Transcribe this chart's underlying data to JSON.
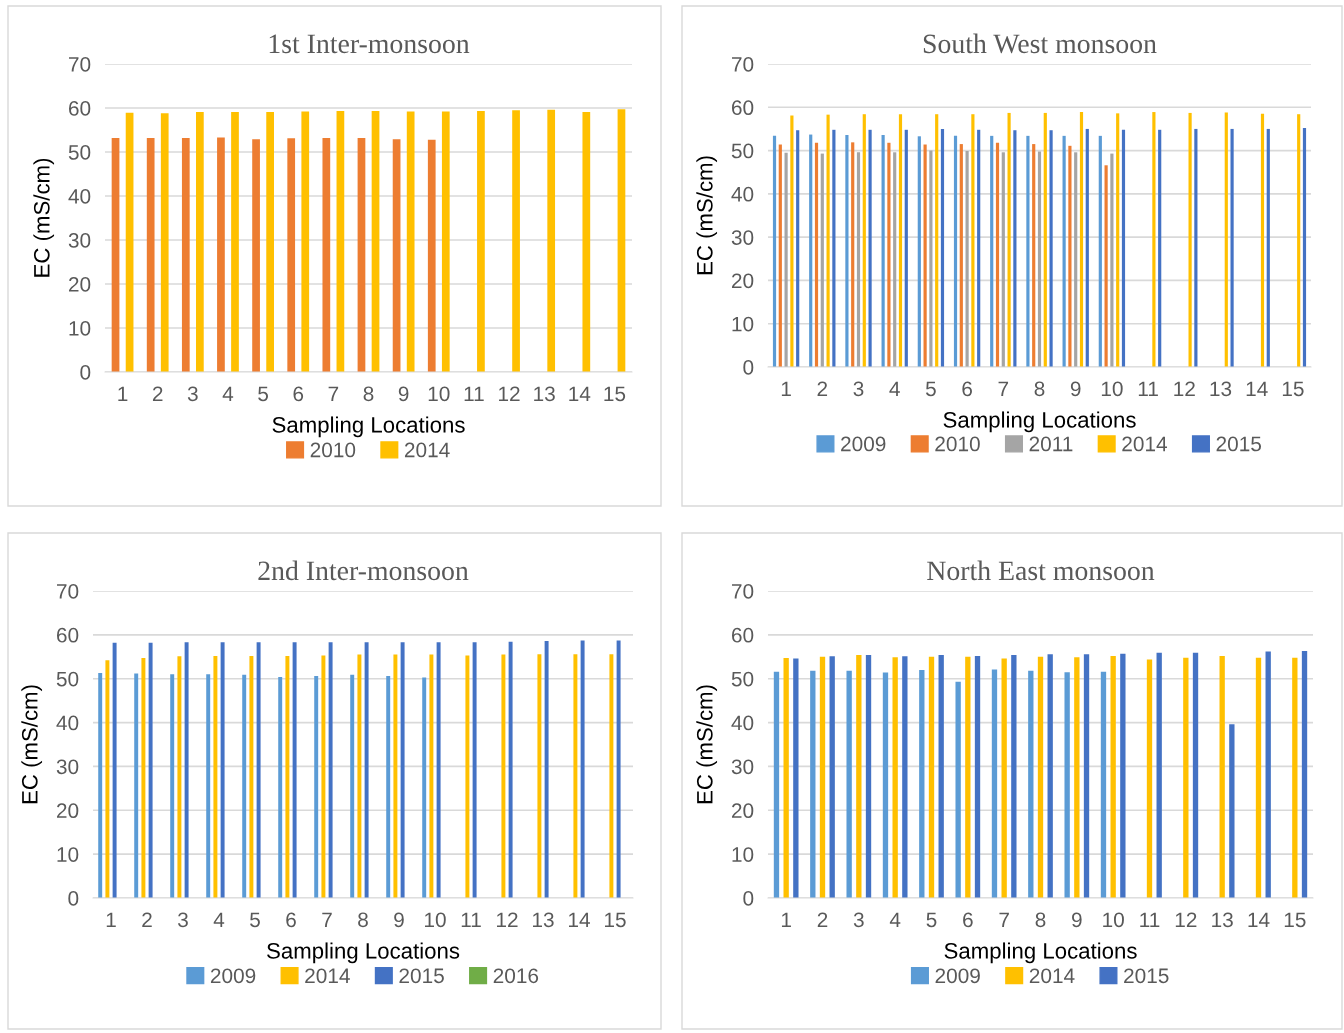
{
  "chart_data": [
    {
      "type": "bar",
      "title": "1st Inter-monsoon",
      "xlabel": "Sampling Locations",
      "ylabel": "EC (mS/cm)",
      "categories": [
        "1",
        "2",
        "3",
        "4",
        "5",
        "6",
        "7",
        "8",
        "9",
        "10",
        "11",
        "12",
        "13",
        "14",
        "15"
      ],
      "ylim": [
        0,
        70
      ],
      "yticks": [
        0,
        10,
        20,
        30,
        40,
        50,
        60,
        70
      ],
      "grid": "y",
      "legend": "bottom",
      "series": [
        {
          "name": "2010",
          "color": "#ed7d31",
          "values": [
            53.2,
            53.2,
            53.2,
            53.3,
            52.9,
            53.1,
            53.2,
            53.2,
            52.9,
            52.8,
            null,
            null,
            null,
            null,
            null
          ]
        },
        {
          "name": "2014",
          "color": "#ffc000",
          "values": [
            58.9,
            58.8,
            59.1,
            59.1,
            59.1,
            59.2,
            59.3,
            59.3,
            59.2,
            59.2,
            59.3,
            59.5,
            59.6,
            59.1,
            59.7
          ]
        }
      ]
    },
    {
      "type": "bar",
      "title": "South West monsoon",
      "xlabel": "Sampling Locations",
      "ylabel": "EC (mS/cm)",
      "categories": [
        "1",
        "2",
        "3",
        "4",
        "5",
        "6",
        "7",
        "8",
        "9",
        "10",
        "11",
        "12",
        "13",
        "14",
        "15"
      ],
      "ylim": [
        0,
        70
      ],
      "yticks": [
        0,
        10,
        20,
        30,
        40,
        50,
        60,
        70
      ],
      "grid": "y",
      "legend": "bottom",
      "series": [
        {
          "name": "2009",
          "color": "#5b9bd5",
          "values": [
            53.4,
            53.7,
            53.6,
            53.6,
            53.3,
            53.4,
            53.4,
            53.4,
            53.4,
            53.4,
            null,
            null,
            null,
            null,
            null
          ]
        },
        {
          "name": "2010",
          "color": "#ed7d31",
          "values": [
            51.4,
            51.8,
            51.9,
            51.8,
            51.4,
            51.5,
            51.8,
            51.5,
            51.1,
            46.6,
            null,
            null,
            null,
            null,
            null
          ]
        },
        {
          "name": "2011",
          "color": "#a5a5a5",
          "values": [
            49.5,
            49.3,
            49.6,
            49.6,
            50.0,
            49.9,
            49.6,
            49.8,
            49.6,
            49.3,
            null,
            null,
            null,
            null,
            null
          ]
        },
        {
          "name": "2014",
          "color": "#ffc000",
          "values": [
            58.1,
            58.3,
            58.4,
            58.4,
            58.4,
            58.4,
            58.7,
            58.7,
            58.9,
            58.6,
            58.9,
            58.7,
            58.8,
            58.5,
            58.4
          ]
        },
        {
          "name": "2015",
          "color": "#4472c4",
          "values": [
            54.7,
            54.8,
            54.8,
            54.8,
            55.0,
            54.8,
            54.7,
            54.7,
            55.0,
            54.8,
            54.8,
            55.0,
            55.0,
            55.0,
            55.2
          ]
        }
      ]
    },
    {
      "type": "bar",
      "title": "2nd Inter-monsoon",
      "xlabel": "Sampling Locations",
      "ylabel": "EC (mS/cm)",
      "categories": [
        "1",
        "2",
        "3",
        "4",
        "5",
        "6",
        "7",
        "8",
        "9",
        "10",
        "11",
        "12",
        "13",
        "14",
        "15"
      ],
      "ylim": [
        0,
        70
      ],
      "yticks": [
        0,
        10,
        20,
        30,
        40,
        50,
        60,
        70
      ],
      "grid": "y",
      "legend": "bottom",
      "series": [
        {
          "name": "2009",
          "color": "#5b9bd5",
          "values": [
            51.3,
            51.2,
            51.0,
            51.0,
            50.9,
            50.4,
            50.6,
            50.9,
            50.6,
            50.3,
            null,
            null,
            null,
            null,
            null
          ]
        },
        {
          "name": "2014",
          "color": "#ffc000",
          "values": [
            54.2,
            54.7,
            55.1,
            55.2,
            55.2,
            55.2,
            55.3,
            55.5,
            55.5,
            55.5,
            55.3,
            55.5,
            55.6,
            55.6,
            55.6
          ]
        },
        {
          "name": "2015",
          "color": "#4472c4",
          "values": [
            58.2,
            58.2,
            58.3,
            58.3,
            58.3,
            58.3,
            58.3,
            58.3,
            58.3,
            58.3,
            58.3,
            58.4,
            58.6,
            58.7,
            58.7
          ]
        },
        {
          "name": "2016",
          "color": "#70ad47",
          "values": [
            null,
            null,
            null,
            null,
            null,
            null,
            null,
            null,
            null,
            null,
            null,
            null,
            null,
            null,
            null
          ]
        }
      ]
    },
    {
      "type": "bar",
      "title": "North East monsoon",
      "xlabel": "Sampling Locations",
      "ylabel": "EC (mS/cm)",
      "categories": [
        "1",
        "2",
        "3",
        "4",
        "5",
        "6",
        "7",
        "8",
        "9",
        "10",
        "11",
        "12",
        "13",
        "14",
        "15"
      ],
      "ylim": [
        0,
        70
      ],
      "yticks": [
        0,
        10,
        20,
        30,
        40,
        50,
        60,
        70
      ],
      "grid": "y",
      "legend": "bottom",
      "series": [
        {
          "name": "2009",
          "color": "#5b9bd5",
          "values": [
            51.6,
            51.8,
            51.8,
            51.4,
            52.0,
            49.3,
            52.1,
            51.8,
            51.5,
            51.6,
            null,
            null,
            null,
            null,
            null
          ]
        },
        {
          "name": "2014",
          "color": "#ffc000",
          "values": [
            54.7,
            55.0,
            55.4,
            54.9,
            55.0,
            55.0,
            54.6,
            55.0,
            54.9,
            55.2,
            54.4,
            54.8,
            55.2,
            54.8,
            54.8
          ]
        },
        {
          "name": "2015",
          "color": "#4472c4",
          "values": [
            54.6,
            55.1,
            55.4,
            55.1,
            55.4,
            55.2,
            55.4,
            55.6,
            55.6,
            55.7,
            55.9,
            55.9,
            39.6,
            56.2,
            56.3
          ]
        }
      ]
    }
  ]
}
